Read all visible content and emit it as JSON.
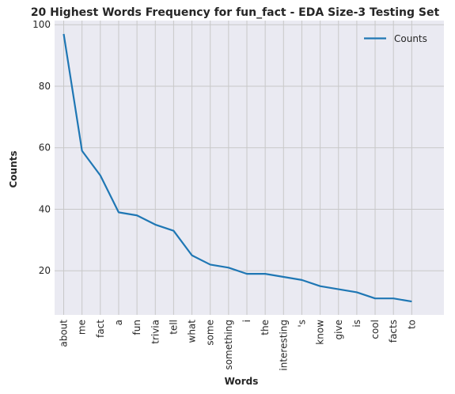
{
  "chart_data": {
    "type": "line",
    "title": "20 Highest Words Frequency for fun_fact - EDA Size-3 Testing Set",
    "xlabel": "Words",
    "ylabel": "Counts",
    "categories": [
      "about",
      "me",
      "fact",
      "a",
      "fun",
      "trivia",
      "tell",
      "what",
      "some",
      "something",
      "i",
      "the",
      "interesting",
      "'s",
      "know",
      "give",
      "is",
      "cool",
      "facts",
      "to"
    ],
    "series": [
      {
        "name": "Counts",
        "values": [
          97,
          59,
          51,
          39,
          38,
          35,
          33,
          25,
          22,
          21,
          19,
          19,
          18,
          17,
          15,
          14,
          13,
          11,
          11,
          10
        ]
      }
    ],
    "ylim": [
      5.65,
      101.35
    ],
    "yticks": [
      20,
      40,
      60,
      80,
      100
    ],
    "grid": true,
    "legend_position": "top-right",
    "colors": {
      "line": "#1f77b4",
      "background": "#eaeaf2",
      "grid": "#c8c8c8"
    }
  }
}
